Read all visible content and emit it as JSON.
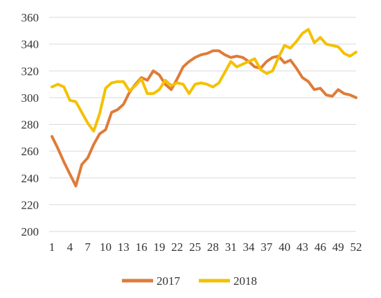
{
  "chart_data": {
    "type": "line",
    "title": "",
    "xlabel": "",
    "ylabel": "",
    "x": [
      1,
      2,
      3,
      4,
      5,
      6,
      7,
      8,
      9,
      10,
      11,
      12,
      13,
      14,
      15,
      16,
      17,
      18,
      19,
      20,
      21,
      22,
      23,
      24,
      25,
      26,
      27,
      28,
      29,
      30,
      31,
      32,
      33,
      34,
      35,
      36,
      37,
      38,
      39,
      40,
      41,
      42,
      43,
      44,
      45,
      46,
      47,
      48,
      49,
      50,
      51,
      52
    ],
    "x_tick_labels": [
      "1",
      "4",
      "7",
      "10",
      "13",
      "16",
      "19",
      "22",
      "25",
      "28",
      "31",
      "34",
      "37",
      "40",
      "43",
      "46",
      "49",
      "52"
    ],
    "x_tick_values": [
      1,
      4,
      7,
      10,
      13,
      16,
      19,
      22,
      25,
      28,
      31,
      34,
      37,
      40,
      43,
      46,
      49,
      52
    ],
    "y_ticks": [
      200,
      220,
      240,
      260,
      280,
      300,
      320,
      340,
      360
    ],
    "ylim": [
      200,
      360
    ],
    "grid": "horizontal",
    "legend_position": "bottom",
    "series": [
      {
        "name": "2017",
        "color": "#e07b39",
        "values": [
          271,
          262,
          252,
          243,
          234,
          250,
          255,
          265,
          273,
          276,
          289,
          291,
          295,
          304,
          310,
          315,
          313,
          320,
          317,
          310,
          306,
          314,
          323,
          327,
          330,
          332,
          333,
          335,
          335,
          332,
          330,
          331,
          330,
          327,
          323,
          322,
          327,
          330,
          331,
          326,
          328,
          322,
          315,
          312,
          306,
          307,
          302,
          301,
          306,
          303,
          302,
          300
        ]
      },
      {
        "name": "2018",
        "color": "#f5c000",
        "values": [
          308,
          310,
          308,
          298,
          297,
          289,
          281,
          275,
          288,
          307,
          311,
          312,
          312,
          305,
          309,
          314,
          303,
          303,
          306,
          313,
          309,
          311,
          310,
          303,
          310,
          311,
          310,
          308,
          311,
          319,
          327,
          323,
          325,
          327,
          329,
          321,
          318,
          320,
          330,
          339,
          337,
          342,
          348,
          351,
          341,
          345,
          340,
          339,
          338,
          333,
          331,
          334
        ]
      }
    ]
  }
}
